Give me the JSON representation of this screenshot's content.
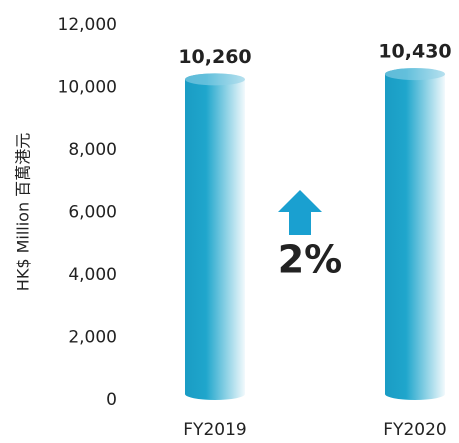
{
  "chart_data": {
    "type": "bar",
    "y_label": "HK$ Million 百萬港元",
    "categories": [
      "FY2019",
      "FY2020"
    ],
    "values": [
      10260,
      10430
    ],
    "value_labels": [
      "10,260",
      "10,430"
    ],
    "color": "#1a9cc4",
    "annotation": "2%",
    "ylim": [
      0,
      12000
    ],
    "yticks": [
      0,
      {
        "value": 2000,
        "label": "2,000"
      },
      {
        "value": 4000,
        "label": "4,000"
      },
      {
        "value": 6000,
        "label": "6,000"
      },
      {
        "value": 8000,
        "label": "8,000"
      },
      {
        "value": 10000,
        "label": "10,000"
      },
      {
        "value": 12000,
        "label": "12,000"
      }
    ],
    "grid": false
  }
}
